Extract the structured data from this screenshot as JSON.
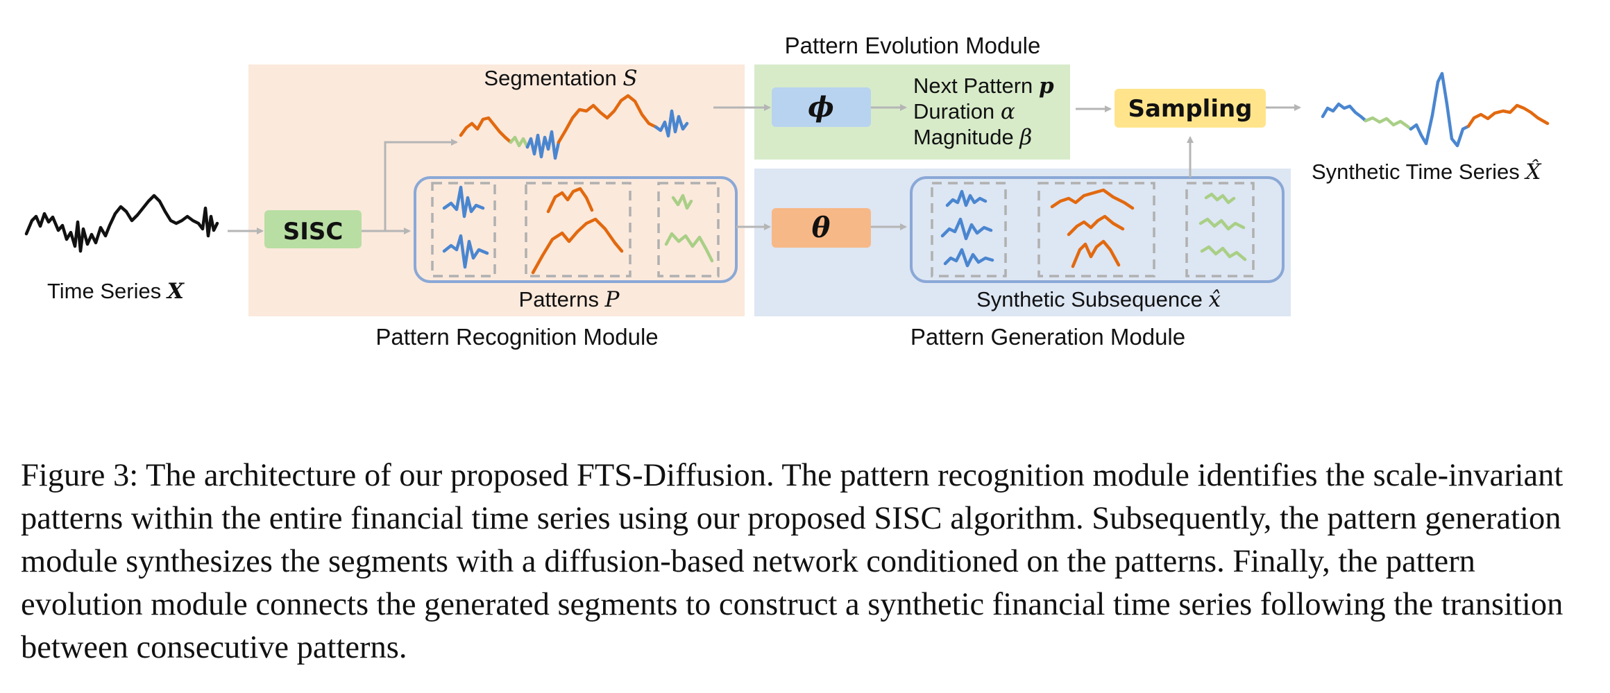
{
  "modules": {
    "evolution": "Pattern Evolution Module",
    "recognition": "Pattern Recognition Module",
    "generation": "Pattern Generation Module"
  },
  "labels": {
    "time_series": "Time Series",
    "time_series_sym": "X",
    "segmentation": "Segmentation",
    "segmentation_sym": "S",
    "patterns": "Patterns",
    "patterns_sym": "P",
    "synthetic_subsequence": "Synthetic Subsequence",
    "synthetic_subsequence_sym": "x̂",
    "synthetic_time_series": "Synthetic Time Series",
    "synthetic_time_series_sym": "X̂",
    "next_pattern": "Next Pattern",
    "next_pattern_sym": "p",
    "duration": "Duration",
    "duration_sym": "α",
    "magnitude": "Magnitude",
    "magnitude_sym": "β"
  },
  "boxes": {
    "sisc": "SISC",
    "phi": "ϕ",
    "theta": "θ",
    "sampling": "Sampling"
  },
  "colors": {
    "recognition_bg": "#fbe9dc",
    "evolution_bg": "#d7ebc9",
    "generation_bg": "#dde6f3",
    "sisc_box": "#b9dea3",
    "phi_box": "#b8d3ef",
    "theta_box": "#f7b887",
    "sampling_box": "#ffe48c",
    "pattern_border": "#8aa8d6",
    "series_blue": "#4a86d0",
    "series_orange": "#e2690f",
    "series_green": "#a9cf86"
  },
  "caption": "Figure 3: The architecture of our proposed FTS-Diffusion. The pattern recognition module identifies the scale-invariant patterns within the entire financial time series using our proposed SISC algorithm. Subsequently, the pattern generation module synthesizes the segments with a diffusion-based network conditioned on the patterns. Finally, the pattern evolution module connects the generated segments to construct a synthetic financial time series following the transition between consecutive patterns."
}
